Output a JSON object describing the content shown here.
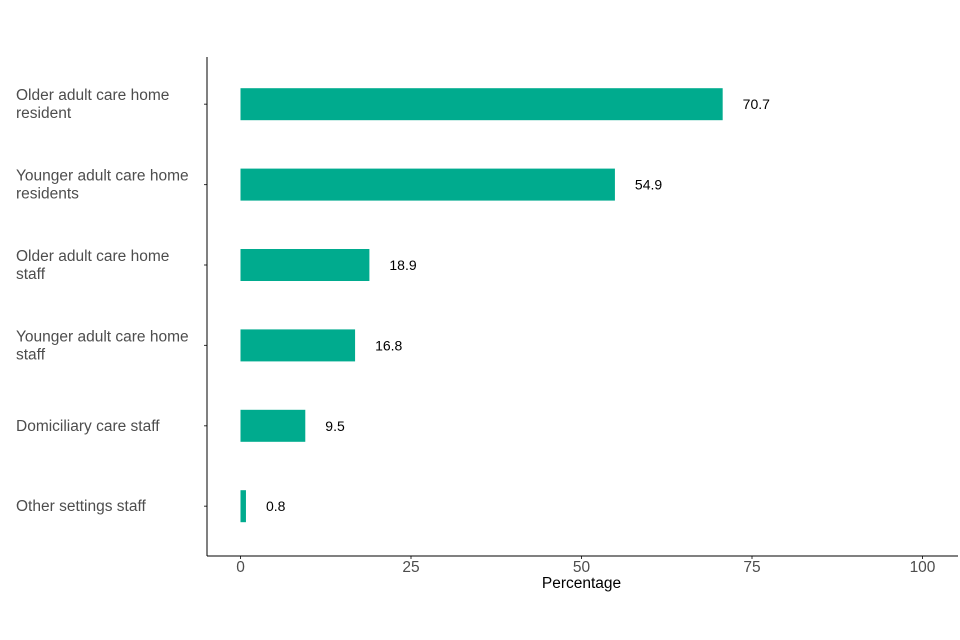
{
  "chart_data": {
    "type": "bar",
    "orientation": "horizontal",
    "categories": [
      [
        "Older adult care home",
        "resident"
      ],
      [
        "Younger adult care home",
        "residents"
      ],
      [
        "Older adult care home",
        "staff"
      ],
      [
        "Younger adult care home",
        "staff"
      ],
      [
        "Domiciliary care staff"
      ],
      [
        "Other settings staff"
      ]
    ],
    "values": [
      70.7,
      54.9,
      18.9,
      16.8,
      9.5,
      0.8
    ],
    "value_labels": [
      "70.7",
      "54.9",
      "18.9",
      "16.8",
      "9.5",
      "0.8"
    ],
    "xlabel": "Percentage",
    "xlim": [
      0,
      100
    ],
    "xticks": [
      0,
      25,
      50,
      75,
      100
    ],
    "bar_color": "#00AB8E",
    "grid": false,
    "legend": "none"
  }
}
